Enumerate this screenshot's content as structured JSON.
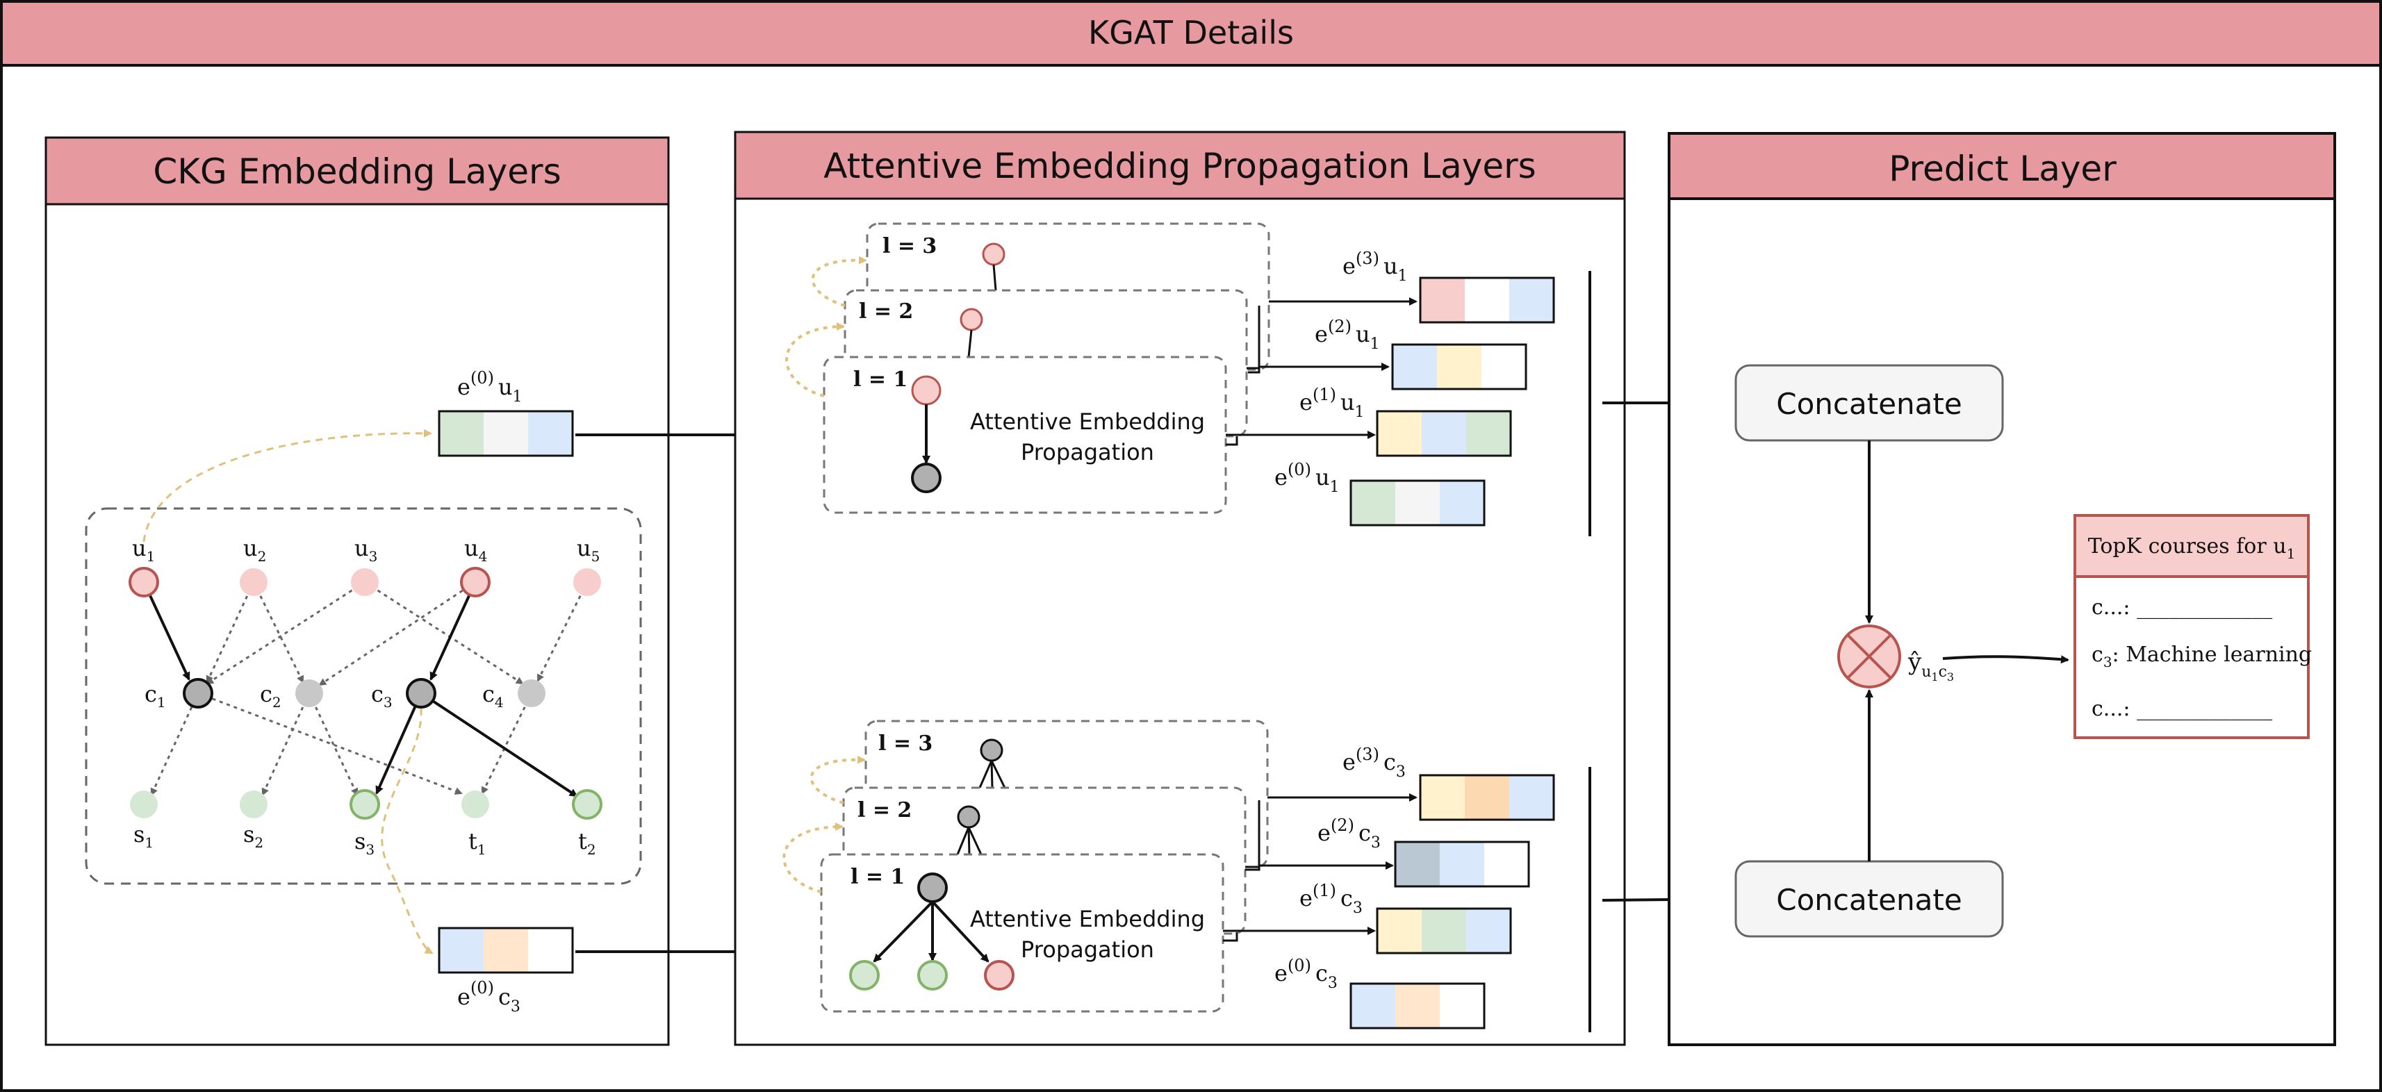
{
  "title": "KGAT Details",
  "colors": {
    "header_fill": "#e6999e",
    "node_user": "#f8cecc",
    "node_user_stroke": "#b85450",
    "node_course": "#b0b0b0",
    "node_skill": "#d5e8d4",
    "node_skill_stroke": "#82b366",
    "arrow_curve": "#e0c07a",
    "emb_green": "#d5e8d4",
    "emb_grey": "#f5f5f5",
    "emb_blue": "#dae8fc",
    "emb_pink": "#f8cecc",
    "emb_yellow": "#fff2cc",
    "emb_orange": "#ffe6cc",
    "emb_slate": "#bac8d3",
    "emb_orange_dark": "#fcd9b0"
  },
  "panels": {
    "ckg": {
      "title": "CKG Embedding Layers"
    },
    "aep": {
      "title": "Attentive Embedding Propagation Layers"
    },
    "predict": {
      "title": "Predict Layer"
    }
  },
  "ckg_graph": {
    "users": [
      {
        "base": "u",
        "sub": "1"
      },
      {
        "base": "u",
        "sub": "2"
      },
      {
        "base": "u",
        "sub": "3"
      },
      {
        "base": "u",
        "sub": "4"
      },
      {
        "base": "u",
        "sub": "5"
      }
    ],
    "courses": [
      {
        "base": "c",
        "sub": "1"
      },
      {
        "base": "c",
        "sub": "2"
      },
      {
        "base": "c",
        "sub": "3"
      },
      {
        "base": "c",
        "sub": "4"
      }
    ],
    "skills": [
      {
        "base": "s",
        "sub": "1"
      },
      {
        "base": "s",
        "sub": "2"
      },
      {
        "base": "s",
        "sub": "3"
      },
      {
        "base": "t",
        "sub": "1"
      },
      {
        "base": "t",
        "sub": "2"
      }
    ]
  },
  "embeddings": {
    "input_user": {
      "base": "e",
      "sup": "(0)",
      "node": "u",
      "sub": "1",
      "colors": [
        "#d5e8d4",
        "#f5f5f5",
        "#dae8fc"
      ]
    },
    "input_course": {
      "base": "e",
      "sup": "(0)",
      "node": "c",
      "sub": "3",
      "colors": [
        "#dae8fc",
        "#ffe6cc",
        "#ffffff"
      ]
    },
    "user_outputs": [
      {
        "base": "e",
        "sup": "(3)",
        "node": "u",
        "sub": "1",
        "colors": [
          "#f8cecc",
          "#ffffff",
          "#dae8fc"
        ]
      },
      {
        "base": "e",
        "sup": "(2)",
        "node": "u",
        "sub": "1",
        "colors": [
          "#dae8fc",
          "#fff2cc",
          "#ffffff"
        ]
      },
      {
        "base": "e",
        "sup": "(1)",
        "node": "u",
        "sub": "1",
        "colors": [
          "#fff2cc",
          "#dae8fc",
          "#d5e8d4"
        ]
      },
      {
        "base": "e",
        "sup": "(0)",
        "node": "u",
        "sub": "1",
        "colors": [
          "#d5e8d4",
          "#f5f5f5",
          "#dae8fc"
        ]
      }
    ],
    "course_outputs": [
      {
        "base": "e",
        "sup": "(3)",
        "node": "c",
        "sub": "3",
        "colors": [
          "#fff2cc",
          "#fcd9b0",
          "#dae8fc"
        ]
      },
      {
        "base": "e",
        "sup": "(2)",
        "node": "c",
        "sub": "3",
        "colors": [
          "#bac8d3",
          "#dae8fc",
          "#ffffff"
        ]
      },
      {
        "base": "e",
        "sup": "(1)",
        "node": "c",
        "sub": "3",
        "colors": [
          "#fff2cc",
          "#d5e8d4",
          "#dae8fc"
        ]
      },
      {
        "base": "e",
        "sup": "(0)",
        "node": "c",
        "sub": "3",
        "colors": [
          "#dae8fc",
          "#ffe6cc",
          "#ffffff"
        ]
      }
    ]
  },
  "layers": {
    "user": [
      "l = 3",
      "l = 2",
      "l = 1"
    ],
    "course": [
      "l = 3",
      "l = 2",
      "l = 1"
    ],
    "propagation_label": [
      "Attentive Embedding",
      "Propagation"
    ]
  },
  "predict": {
    "concat_user": "Concatenate",
    "concat_course": "Concatenate",
    "score": {
      "base": "ŷ",
      "sub1": "u",
      "sub1b": "1",
      "sub2": "c",
      "sub2b": "3"
    },
    "topk": {
      "title_prefix": "TopK courses for u",
      "title_sub": "1",
      "items": [
        {
          "label": "c...: ",
          "value": "_____________"
        },
        {
          "label": "c",
          "sub": "3",
          "label_suffix": ": Machine learning",
          "value": ""
        },
        {
          "label": "c...: ",
          "value": "_____________"
        }
      ]
    }
  }
}
